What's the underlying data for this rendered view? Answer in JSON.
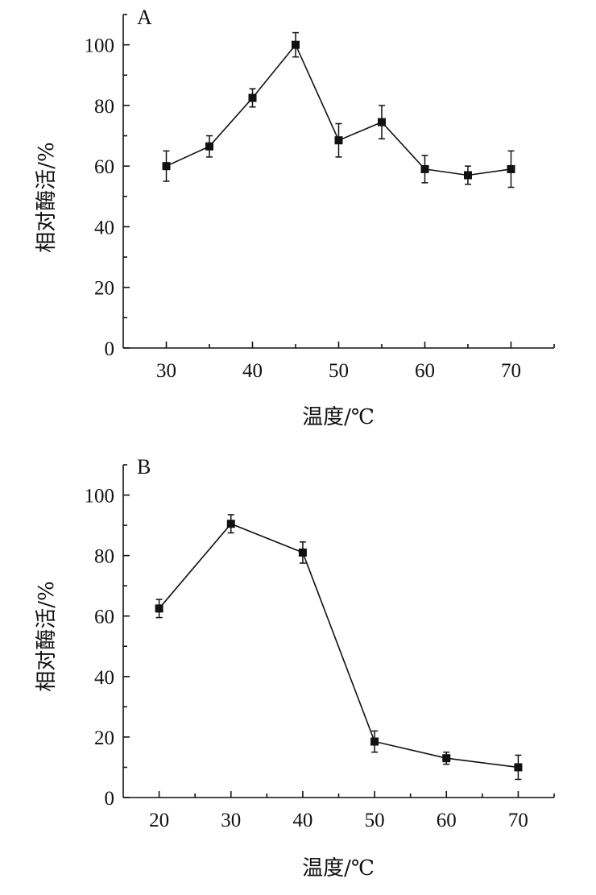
{
  "chart_data": [
    {
      "type": "line",
      "panel_label": "A",
      "xlabel": "温度/℃",
      "ylabel": "相对酶活/%",
      "xlim": [
        25,
        75
      ],
      "ylim": [
        0,
        110
      ],
      "x_ticks": [
        30,
        40,
        50,
        60,
        70
      ],
      "y_ticks": [
        0,
        20,
        40,
        60,
        80,
        100
      ],
      "grid": false,
      "series": [
        {
          "x": [
            30,
            35,
            40,
            45,
            50,
            55,
            60,
            65,
            70
          ],
          "y": [
            60,
            66.5,
            82.5,
            100,
            68.5,
            74.5,
            59,
            57,
            59
          ],
          "err": [
            5,
            3.5,
            3,
            4,
            5.5,
            5.5,
            4.5,
            3,
            6
          ]
        }
      ]
    },
    {
      "type": "line",
      "panel_label": "B",
      "xlabel": "温度/℃",
      "ylabel": "相对酶活/%",
      "xlim": [
        15,
        75
      ],
      "ylim": [
        0,
        110
      ],
      "x_ticks": [
        20,
        30,
        40,
        50,
        60,
        70
      ],
      "y_ticks": [
        0,
        20,
        40,
        60,
        80,
        100
      ],
      "grid": false,
      "series": [
        {
          "x": [
            20,
            30,
            40,
            50,
            60,
            70
          ],
          "y": [
            62.5,
            90.5,
            81,
            18.5,
            13,
            10
          ],
          "err": [
            3,
            3,
            3.5,
            3.5,
            2,
            4
          ]
        }
      ]
    }
  ]
}
